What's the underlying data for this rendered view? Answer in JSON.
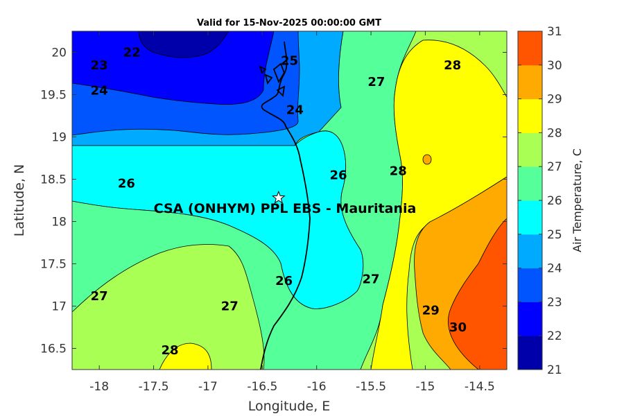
{
  "chart_data": {
    "type": "contour",
    "title": "Valid for 15-Nov-2025 00:00:00 GMT",
    "xlabel": "Longitude, E",
    "ylabel": "Latitude, N",
    "xlim": [
      -18.25,
      -14.25
    ],
    "ylim": [
      16.25,
      20.25
    ],
    "xticks": [
      -18,
      -17.5,
      -17,
      -16.5,
      -16,
      -15.5,
      -15,
      -14.5
    ],
    "yticks": [
      16.5,
      17,
      17.5,
      18,
      18.5,
      19,
      19.5,
      20
    ],
    "xtick_labels": [
      "-18",
      "-17.5",
      "-17",
      "-16.5",
      "-16",
      "-15.5",
      "-15",
      "-14.5"
    ],
    "ytick_labels": [
      "16.5",
      "17",
      "17.5",
      "18",
      "18.5",
      "19",
      "19.5",
      "20"
    ],
    "colorbar": {
      "label": "Air Temperature, C",
      "levels": [
        21,
        22,
        23,
        24,
        25,
        26,
        27,
        28,
        29,
        30,
        31
      ],
      "level_labels": [
        "21",
        "22",
        "23",
        "24",
        "25",
        "26",
        "27",
        "28",
        "29",
        "30",
        "31"
      ],
      "colors": [
        "#0000aa",
        "#0000ff",
        "#0055ff",
        "#00aaff",
        "#00ffff",
        "#55ff99",
        "#aaff55",
        "#ffff00",
        "#ffaa00",
        "#ff5500",
        "#ff0000"
      ]
    },
    "contour_labels": [
      {
        "text": "22",
        "lon": -17.7,
        "lat": 20.0
      },
      {
        "text": "23",
        "lon": -18.0,
        "lat": 19.85
      },
      {
        "text": "24",
        "lon": -18.0,
        "lat": 19.55
      },
      {
        "text": "25",
        "lon": -16.25,
        "lat": 19.9
      },
      {
        "text": "24",
        "lon": -16.2,
        "lat": 19.32
      },
      {
        "text": "27",
        "lon": -15.45,
        "lat": 19.65
      },
      {
        "text": "28",
        "lon": -14.75,
        "lat": 19.85
      },
      {
        "text": "26",
        "lon": -17.75,
        "lat": 18.45
      },
      {
        "text": "26",
        "lon": -15.8,
        "lat": 18.55
      },
      {
        "text": "28",
        "lon": -15.25,
        "lat": 18.6
      },
      {
        "text": "27",
        "lon": -18.0,
        "lat": 17.12
      },
      {
        "text": "26",
        "lon": -16.3,
        "lat": 17.3
      },
      {
        "text": "27",
        "lon": -16.8,
        "lat": 17.0
      },
      {
        "text": "27",
        "lon": -15.5,
        "lat": 17.32
      },
      {
        "text": "29",
        "lon": -14.95,
        "lat": 16.95
      },
      {
        "text": "30",
        "lon": -14.7,
        "lat": 16.75
      },
      {
        "text": "28",
        "lon": -17.35,
        "lat": 16.48
      }
    ],
    "site": {
      "name": "CSA (ONHYM) PPL EBS  - Mauritania",
      "lon": -16.35,
      "lat": 18.28
    }
  }
}
